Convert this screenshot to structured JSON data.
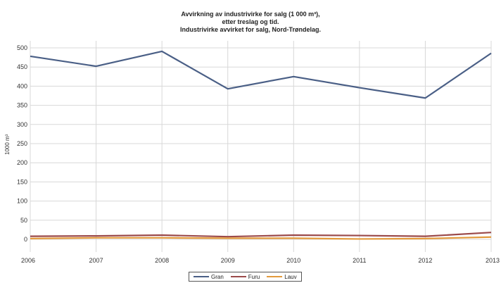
{
  "chart_data": {
    "type": "line",
    "title_lines": [
      "Avvirkning av industrivirke for salg (1 000 m³),",
      "etter treslag og tid.",
      "Industrivirke avvirket for salg, Nord-Trøndelag."
    ],
    "ylabel": "1000 m³",
    "xlabel": "",
    "categories": [
      "2006",
      "2007",
      "2008",
      "2009",
      "2010",
      "2011",
      "2012",
      "2013"
    ],
    "ylim": [
      0,
      500
    ],
    "yticks": [
      0,
      50,
      100,
      150,
      200,
      250,
      300,
      350,
      400,
      450,
      500
    ],
    "grid": true,
    "legend_placement": "bottom",
    "series": [
      {
        "name": "Gran",
        "color": "#4a5f86",
        "values": [
          478,
          452,
          491,
          393,
          425,
          396,
          369,
          486
        ]
      },
      {
        "name": "Furu",
        "color": "#9b4a4a",
        "values": [
          8,
          9,
          11,
          7,
          11,
          10,
          8,
          18
        ]
      },
      {
        "name": "Lauv",
        "color": "#e39a3c",
        "values": [
          2,
          4,
          4,
          3,
          3,
          1,
          2,
          6
        ]
      }
    ]
  }
}
